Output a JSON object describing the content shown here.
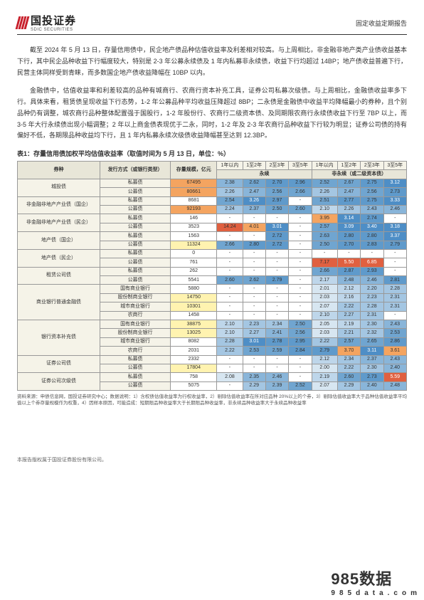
{
  "header": {
    "company_cn": "国投证券",
    "company_en": "SDIC SECURITIES",
    "doc_type": "固定收益定期报告"
  },
  "paragraphs": {
    "p1": "截至 2024 年 5 月 13 日，存量信用债中，民企地产债品种估值收益率及利差相对较高。与上周相比，非金融非地产类产业债收益基本下行，其中民企品种收益下行幅度较大，特别是 2-3 年公募永续债及 1 年内私募非永续债，收益下行均超过 14BP；地产债收益普遍下行，民营主体同样受到青睐，而多数国企地产债收益降幅在 10BP 以内。",
    "p2": "金融债中，估值收益率和利差较高的品种有城商行、农商行资本补充工具，证券公司私募次级债。与上周相比，金融债收益率多下行。具体来看，租赁债呈现收益下行态势，1-2 年公募品种平均收益压降超过 8BP；二永债是金融债中收益平均降幅最小的券种，且个别品种仍有调整，城农商行品种整体配置强于国股行，1-2 年股份行、农商行二级资本债、及同期限农商行永续债收益下行至 7BP 以上，而 3-5 年大行永续债出现小幅调整；2 年以上商金债表现优于二永，同时，1-2 年及 2-3 年农商行品种收益下行较为明显；证券公司债的持有偏好不低，各期限品种收益均下行，且 1 年内私募永续次级债收益降幅甚至达到 12.3BP。"
  },
  "table": {
    "caption": "表1：存量信用债加权平均估值收益率（取值时间为 5 月 13 日，单位：%）",
    "headers": {
      "col1": "券种",
      "col2": "发行方式（或银行类型）",
      "col3": "存量规模，亿元",
      "group1": "永续",
      "group2": "非永续（或二级资本债）",
      "sub": [
        "1年以内",
        "1至2年",
        "2至3年",
        "3至5年",
        "1年以内",
        "1至2年",
        "2至3年",
        "3至5年"
      ]
    },
    "rows": [
      {
        "cat": "城投债",
        "sub": "私募债",
        "amt": "67495",
        "v": [
          "2.38",
          "2.62",
          "2.70",
          "2.96",
          "2.52",
          "2.67",
          "2.75",
          "3.12"
        ]
      },
      {
        "cat": "",
        "sub": "公募债",
        "amt": "80661",
        "v": [
          "2.26",
          "2.47",
          "2.56",
          "2.66",
          "2.26",
          "2.47",
          "2.56",
          "2.73"
        ]
      },
      {
        "cat": "非金融非地产产业债（国企）",
        "sub": "私募债",
        "amt": "8681",
        "v": [
          "2.54",
          "3.26",
          "2.97",
          "-",
          "2.51",
          "2.77",
          "2.75",
          "3.33"
        ]
      },
      {
        "cat": "",
        "sub": "公募债",
        "amt": "92193",
        "v": [
          "2.24",
          "2.37",
          "2.50",
          "2.60",
          "2.10",
          "2.26",
          "2.43",
          "2.46"
        ]
      },
      {
        "cat": "非金融非地产产业债（民企）",
        "sub": "私募债",
        "amt": "146",
        "v": [
          "-",
          "-",
          "-",
          "-",
          "3.95",
          "3.14",
          "2.74",
          "-"
        ]
      },
      {
        "cat": "",
        "sub": "公募债",
        "amt": "3523",
        "v": [
          "14.24",
          "4.01",
          "3.01",
          "-",
          "2.57",
          "3.09",
          "3.40",
          "3.18"
        ]
      },
      {
        "cat": "地产债（国企）",
        "sub": "私募债",
        "amt": "1563",
        "v": [
          "-",
          "-",
          "2.72",
          "-",
          "2.63",
          "2.80",
          "2.80",
          "3.37"
        ]
      },
      {
        "cat": "",
        "sub": "公募债",
        "amt": "11324",
        "v": [
          "2.66",
          "2.80",
          "2.72",
          "-",
          "2.50",
          "2.70",
          "2.83",
          "2.79"
        ]
      },
      {
        "cat": "地产债（民企）",
        "sub": "私募债",
        "amt": "0",
        "v": [
          "-",
          "-",
          "-",
          "-",
          "-",
          "-",
          "-",
          "-"
        ]
      },
      {
        "cat": "",
        "sub": "公募债",
        "amt": "761",
        "v": [
          "-",
          "-",
          "-",
          "-",
          "7.17",
          "5.50",
          "6.85",
          "-"
        ]
      },
      {
        "cat": "租赁公司债",
        "sub": "私募债",
        "amt": "262",
        "v": [
          "-",
          "-",
          "-",
          "-",
          "2.66",
          "2.87",
          "2.93",
          "-"
        ]
      },
      {
        "cat": "",
        "sub": "公募债",
        "amt": "5541",
        "v": [
          "2.60",
          "2.62",
          "2.79",
          "-",
          "2.17",
          "2.48",
          "2.46",
          "2.81"
        ]
      },
      {
        "cat": "商业银行普通金融债",
        "sub": "国有商业银行",
        "amt": "5880",
        "v": [
          "-",
          "-",
          "-",
          "-",
          "2.01",
          "2.12",
          "2.20",
          "2.28"
        ]
      },
      {
        "cat": "",
        "sub": "股份制商业银行",
        "amt": "14750",
        "v": [
          "-",
          "-",
          "-",
          "-",
          "2.03",
          "2.16",
          "2.23",
          "2.31"
        ]
      },
      {
        "cat": "",
        "sub": "城市商业银行",
        "amt": "10301",
        "v": [
          "-",
          "-",
          "-",
          "-",
          "2.07",
          "2.22",
          "2.28",
          "2.31"
        ]
      },
      {
        "cat": "",
        "sub": "农商行",
        "amt": "1458",
        "v": [
          "-",
          "-",
          "-",
          "-",
          "2.10",
          "2.27",
          "2.31",
          "-"
        ]
      },
      {
        "cat": "银行资本补充债",
        "sub": "国有商业银行",
        "amt": "38875",
        "v": [
          "2.10",
          "2.23",
          "2.34",
          "2.50",
          "2.05",
          "2.19",
          "2.30",
          "2.43"
        ]
      },
      {
        "cat": "",
        "sub": "股份制商业银行",
        "amt": "13025",
        "v": [
          "2.10",
          "2.27",
          "2.41",
          "2.56",
          "2.03",
          "2.21",
          "2.32",
          "2.53"
        ]
      },
      {
        "cat": "",
        "sub": "城市商业银行",
        "amt": "8082",
        "v": [
          "2.28",
          "3.01",
          "2.78",
          "2.95",
          "2.22",
          "2.57",
          "2.65",
          "2.86"
        ]
      },
      {
        "cat": "",
        "sub": "农商行",
        "amt": "2031",
        "v": [
          "2.22",
          "2.53",
          "2.59",
          "2.84",
          "2.79",
          "3.70",
          "3.11",
          "3.61"
        ]
      },
      {
        "cat": "证券公司债",
        "sub": "私募债",
        "amt": "2332",
        "v": [
          "-",
          "-",
          "-",
          "-",
          "2.12",
          "2.34",
          "2.37",
          "2.43"
        ]
      },
      {
        "cat": "",
        "sub": "公募债",
        "amt": "17804",
        "v": [
          "-",
          "-",
          "-",
          "-",
          "2.00",
          "2.22",
          "2.30",
          "2.40"
        ]
      },
      {
        "cat": "证券公司次级债",
        "sub": "私募债",
        "amt": "758",
        "v": [
          "2.08",
          "2.35",
          "2.46",
          "-",
          "2.19",
          "2.60",
          "2.73",
          "5.59"
        ]
      },
      {
        "cat": "",
        "sub": "公募债",
        "amt": "5075",
        "v": [
          "-",
          "2.29",
          "2.39",
          "2.52",
          "2.07",
          "2.29",
          "2.40",
          "2.48"
        ]
      }
    ],
    "footnote": "资料来源：申债信息网，国投证券研究中心；数据说明：1）含权债估值收益率为行权收益率，2）剔除估值收益率在所对应品种 20%以上的个券，3）剔除估值收益率大于品种估值收益率平均值以上个券存量规模作为权重，4）因样本原因，可能造成：短期限品种收益率大于长期限品种收益率，非永续品种收益率大于永续品种收益率"
  },
  "footer": {
    "copyright": "本报告版权属于国投证券股份有限公司。"
  },
  "watermark": {
    "main": "985数据",
    "sub": "985data.com"
  }
}
